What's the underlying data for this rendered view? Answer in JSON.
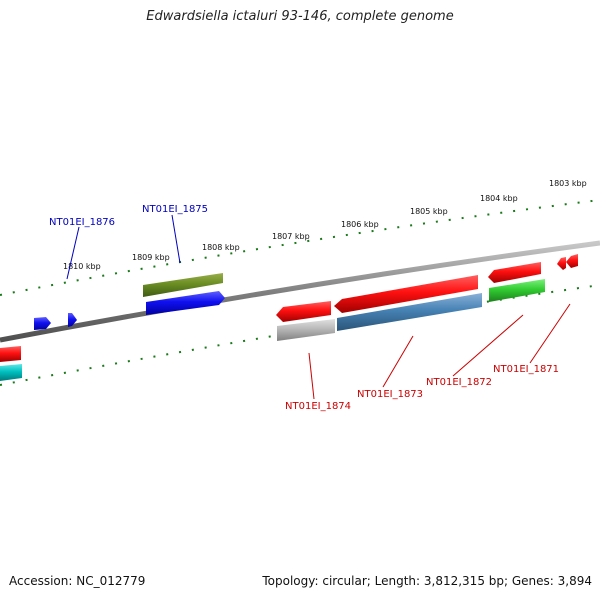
{
  "title": "Edwardsiella ictaluri 93-146, complete genome",
  "footer": {
    "accession": "Accession: NC_012779",
    "summary": "Topology: circular; Length: 3,812,315 bp; Genes: 3,894"
  },
  "ticks": [
    "1810 kbp",
    "1809 kbp",
    "1808 kbp",
    "1807 kbp",
    "1806 kbp",
    "1805 kbp",
    "1804 kbp",
    "1803 kbp"
  ],
  "gene_labels": {
    "g1876": "NT01EI_1876",
    "g1875": "NT01EI_1875",
    "g1874": "NT01EI_1874",
    "g1873": "NT01EI_1873",
    "g1872": "NT01EI_1872",
    "g1871": "NT01EI_1871"
  },
  "colors": {
    "forward_label": "#0000c0",
    "reverse_label": "#cc0000",
    "backbone": "#808080",
    "tick": "#1a7a1a"
  }
}
